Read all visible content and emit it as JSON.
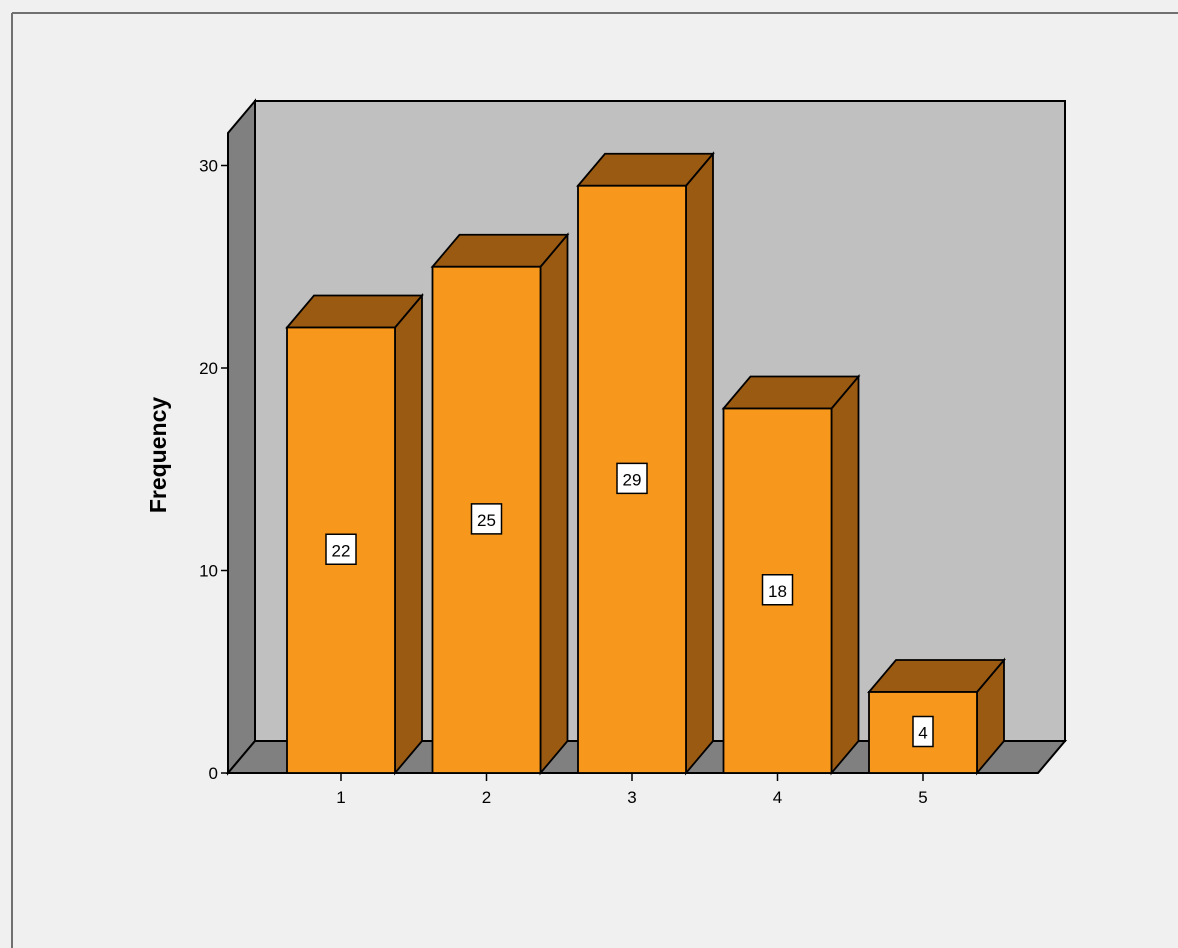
{
  "chart_data": {
    "type": "bar",
    "categories": [
      "1",
      "2",
      "3",
      "4",
      "5"
    ],
    "values": [
      22,
      25,
      29,
      18,
      4
    ],
    "data_labels": [
      "22",
      "25",
      "29",
      "18",
      "4"
    ],
    "ylabel": "Frequency",
    "ylim": [
      0,
      32
    ],
    "yticks": [
      {
        "value": 0,
        "label": "0"
      },
      {
        "value": 10,
        "label": "10"
      },
      {
        "value": 20,
        "label": "20"
      },
      {
        "value": 30,
        "label": "30"
      }
    ],
    "three_d": true,
    "grid": false,
    "colors": {
      "background": "#F0F0F0",
      "wall": "#C0C0C0",
      "wall_side": "#808080",
      "floor": "#808080",
      "bar_front": "#F7981D",
      "bar_top": "#9A5A12",
      "bar_side": "#9A5A12",
      "outline": "#000000",
      "label_box": "#FFFFFF"
    }
  }
}
